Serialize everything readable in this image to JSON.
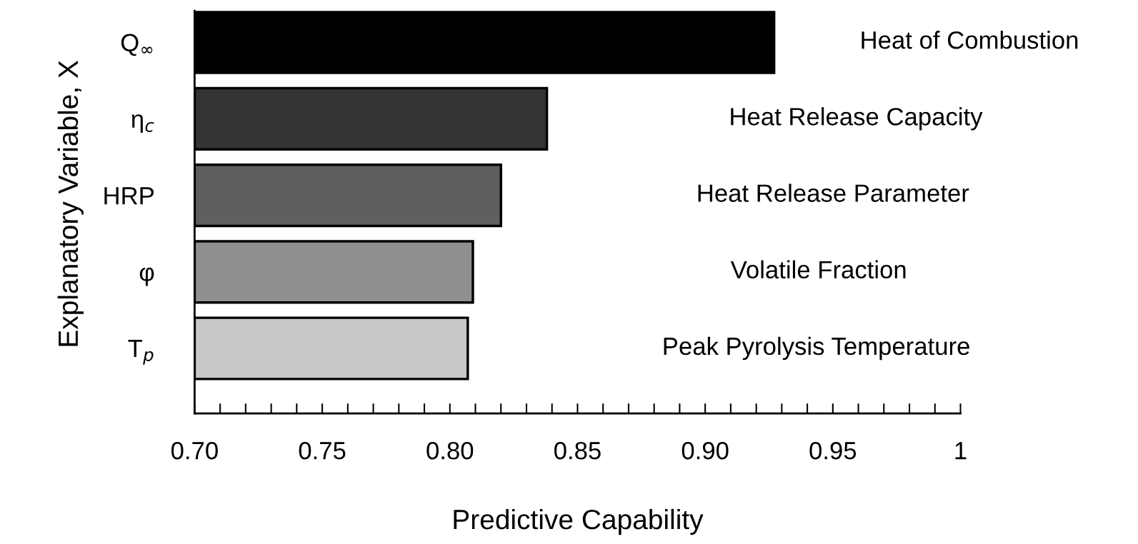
{
  "chart_data": {
    "type": "bar",
    "orientation": "horizontal",
    "xlabel": "Predictive Capability",
    "ylabel": "Explanatory Variable, X",
    "categories": [
      "Q$_{∞}$",
      "η$_{c}$",
      "HRP",
      "φ",
      "T$_{p}$"
    ],
    "values": [
      0.927,
      0.838,
      0.82,
      0.809,
      0.807
    ],
    "colors": [
      "#000000",
      "#333333",
      "#5f5f5f",
      "#8f8f8f",
      "#c8c8c8"
    ],
    "xlim": [
      0.7,
      1.0
    ],
    "xticks": [
      {
        "value": 0.7,
        "label": "0.70"
      },
      {
        "value": 0.71,
        "label": null
      },
      {
        "value": 0.72,
        "label": null
      },
      {
        "value": 0.73,
        "label": null
      },
      {
        "value": 0.74,
        "label": null
      },
      {
        "value": 0.75,
        "label": "0.75"
      },
      {
        "value": 0.76,
        "label": null
      },
      {
        "value": 0.77,
        "label": null
      },
      {
        "value": 0.78,
        "label": null
      },
      {
        "value": 0.79,
        "label": null
      },
      {
        "value": 0.8,
        "label": "0.80"
      },
      {
        "value": 0.81,
        "label": null
      },
      {
        "value": 0.82,
        "label": null
      },
      {
        "value": 0.83,
        "label": null
      },
      {
        "value": 0.84,
        "label": null
      },
      {
        "value": 0.85,
        "label": "0.85"
      },
      {
        "value": 0.86,
        "label": null
      },
      {
        "value": 0.87,
        "label": null
      },
      {
        "value": 0.88,
        "label": null
      },
      {
        "value": 0.89,
        "label": null
      },
      {
        "value": 0.9,
        "label": "0.90"
      },
      {
        "value": 0.91,
        "label": null
      },
      {
        "value": 0.92,
        "label": null
      },
      {
        "value": 0.93,
        "label": null
      },
      {
        "value": 0.94,
        "label": null
      },
      {
        "value": 0.95,
        "label": "0.95"
      },
      {
        "value": 0.96,
        "label": null
      },
      {
        "value": 0.97,
        "label": null
      },
      {
        "value": 0.98,
        "label": null
      },
      {
        "value": 0.99,
        "label": null
      },
      {
        "value": 1,
        "label": "1"
      }
    ],
    "annotations": [
      "Heat of Combustion",
      "Heat Release Capacity",
      "Heat Release Parameter",
      "Volatile Fraction",
      "Peak Pyrolysis Temperature"
    ],
    "grid": false
  }
}
